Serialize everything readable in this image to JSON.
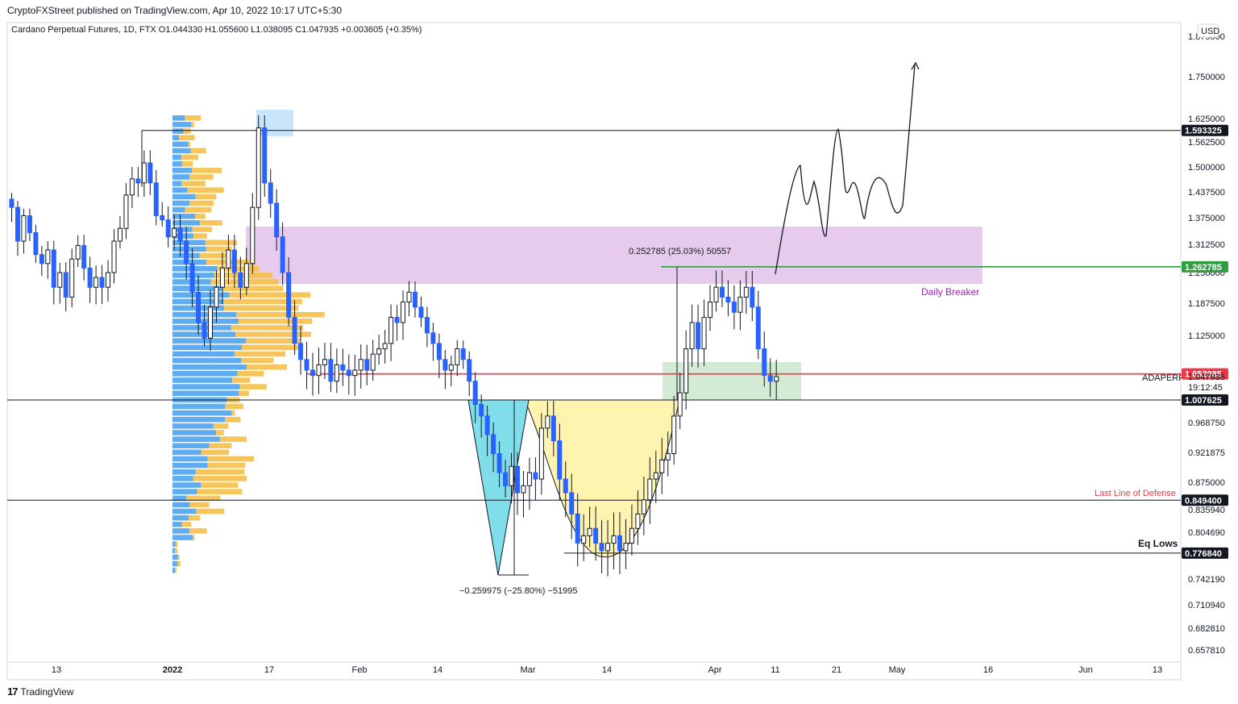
{
  "header": {
    "publisher": "CryptoFXStreet published on TradingView.com, Apr 10, 2022 10:17 UTC+5:30"
  },
  "symbol": {
    "line": "Cardano Perpetual Futures, 1D, FTX  O1.044330  H1.055600  L1.038095  C1.047935  +0.003605 (+0.35%)"
  },
  "currency": "USD",
  "footer": {
    "brand": "TradingView",
    "logo_icon": "tradingview-logo-icon"
  },
  "colors": {
    "bull_candle": "#ffffff",
    "bear_candle": "#2962ff",
    "volume_up": "#f5c04a",
    "volume_down": "#4ea3ef",
    "breaker_zone": "#e1bee7",
    "support_zone": "#c8e6c9",
    "cup": "#fff3b0",
    "drop_triangle": "#80deea",
    "red_level": "#f23645",
    "green_level": "#2e9e3e"
  },
  "chart_data": {
    "type": "candlestick",
    "symbol": "ADAPERP",
    "timeframe": "1D",
    "exchange": "FTX",
    "ohlc_last": {
      "open": 1.04433,
      "high": 1.0556,
      "low": 1.038095,
      "close": 1.047935,
      "change": 0.003605,
      "change_pct": 0.35
    },
    "ylim": [
      0.64,
      1.88
    ],
    "y_ticks": [
      "1.875000",
      "1.750000",
      "1.625000",
      "1.562500",
      "1.500000",
      "1.437500",
      "1.375000",
      "1.312500",
      "1.250000",
      "1.187500",
      "1.125000",
      "1.047935",
      "0.968750",
      "0.921875",
      "0.875000",
      "0.835940",
      "0.804690",
      "0.742190",
      "0.710940",
      "0.682810",
      "0.657810"
    ],
    "y_tick_values": [
      1.875,
      1.75,
      1.625,
      1.5625,
      1.5,
      1.4375,
      1.375,
      1.3125,
      1.25,
      1.1875,
      1.125,
      1.047935,
      0.96875,
      0.921875,
      0.875,
      0.83594,
      0.80469,
      0.74219,
      0.71094,
      0.68281,
      0.65781
    ],
    "x_ticks": [
      "13",
      "2022",
      "17",
      "Feb",
      "14",
      "Mar",
      "14",
      "Apr",
      "11",
      "21",
      "May",
      "16",
      "Jun",
      "13"
    ],
    "price_tag": {
      "symbol": "ADAPERP",
      "value": "1.047935",
      "countdown": "19:12:45"
    },
    "levels": [
      {
        "value": 1.593325,
        "label": "1.593325",
        "color": "#131722"
      },
      {
        "value": 1.262785,
        "label": "1.262785",
        "color": "#2e9e3e"
      },
      {
        "value": 1.052985,
        "label": "1.052985",
        "color": "#f23645"
      },
      {
        "value": 1.007625,
        "label": "1.007625",
        "color": "#131722"
      },
      {
        "value": 0.8494,
        "label": "0.849400",
        "color": "#131722"
      },
      {
        "value": 0.77684,
        "label": "0.776840",
        "color": "#131722"
      }
    ],
    "annotations": {
      "breaker": "Daily Breaker",
      "last_line": "Last Line of Defense",
      "eq_lows": "Eq Lows",
      "measure_up": "0.252785 (25.03%) 50557",
      "measure_down": "−0.259975 (−25.80%) −51995"
    },
    "closes": [
      1.4,
      1.32,
      1.38,
      1.34,
      1.29,
      1.27,
      1.3,
      1.22,
      1.25,
      1.2,
      1.28,
      1.31,
      1.26,
      1.22,
      1.24,
      1.22,
      1.25,
      1.32,
      1.35,
      1.43,
      1.47,
      1.46,
      1.51,
      1.46,
      1.38,
      1.37,
      1.33,
      1.35,
      1.32,
      1.27,
      1.21,
      1.15,
      1.12,
      1.18,
      1.22,
      1.26,
      1.3,
      1.25,
      1.22,
      1.27,
      1.4,
      1.6,
      1.46,
      1.41,
      1.33,
      1.25,
      1.16,
      1.11,
      1.08,
      1.06,
      1.05,
      1.07,
      1.08,
      1.04,
      1.07,
      1.06,
      1.05,
      1.06,
      1.08,
      1.06,
      1.09,
      1.1,
      1.11,
      1.16,
      1.15,
      1.19,
      1.21,
      1.18,
      1.16,
      1.13,
      1.11,
      1.08,
      1.06,
      1.07,
      1.1,
      1.08,
      1.04,
      1.0,
      0.98,
      0.95,
      0.92,
      0.89,
      0.87,
      0.9,
      0.86,
      0.87,
      0.89,
      0.88,
      0.96,
      0.98,
      0.94,
      0.88,
      0.86,
      0.83,
      0.79,
      0.8,
      0.81,
      0.79,
      0.78,
      0.79,
      0.8,
      0.78,
      0.79,
      0.81,
      0.83,
      0.85,
      0.88,
      0.89,
      0.91,
      0.92,
      0.98,
      1.02,
      1.1,
      1.15,
      1.1,
      1.16,
      1.19,
      1.22,
      1.2,
      1.19,
      1.17,
      1.2,
      1.22,
      1.18,
      1.1,
      1.05,
      1.04,
      1.048
    ]
  }
}
